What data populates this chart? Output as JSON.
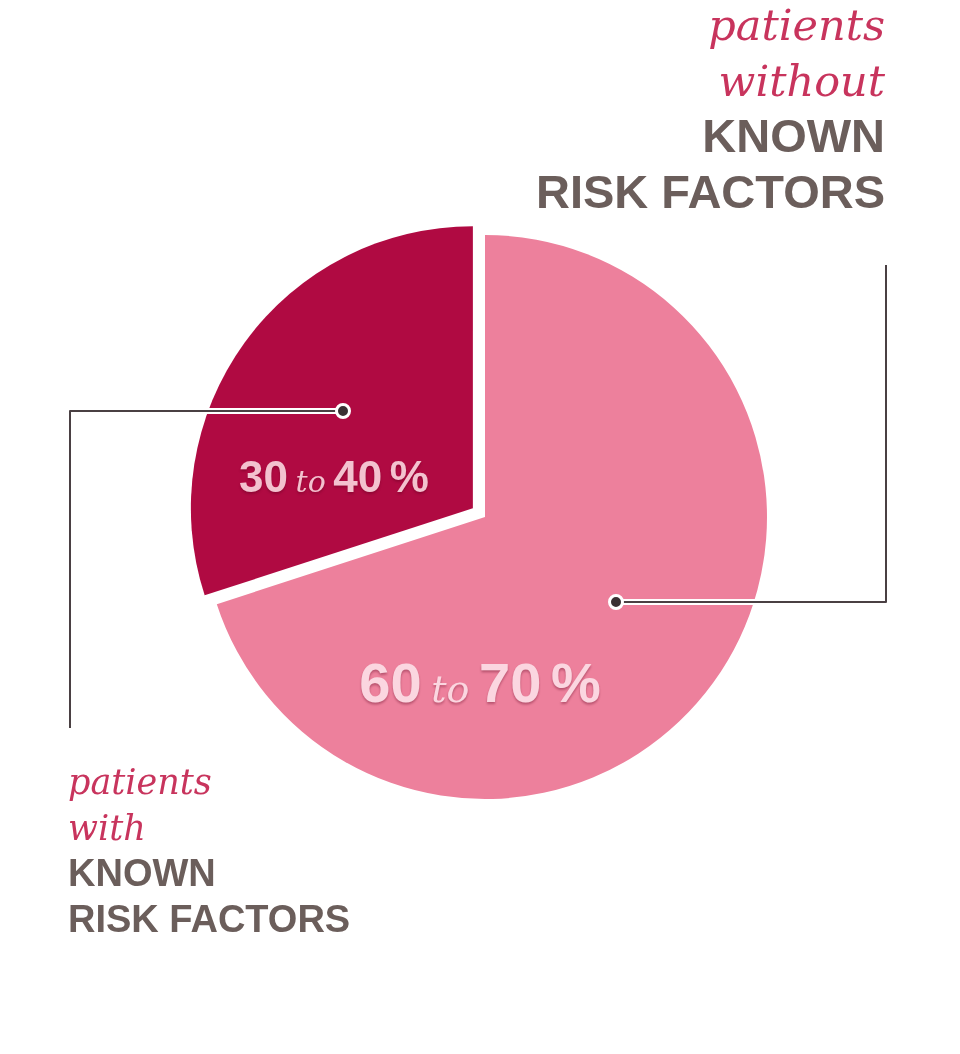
{
  "chart_data": {
    "type": "pie",
    "categories": [
      "patients\nwithout\nKNOWN\nRISK FACTORS",
      "patients\nwith\nKNOWN\nRISK FACTORS"
    ],
    "values": [
      70,
      30
    ],
    "colors": [
      "#ed809c",
      "#b00a42"
    ],
    "value_labels": [
      "60 to 70 %",
      "30 to 40 %"
    ]
  }
}
